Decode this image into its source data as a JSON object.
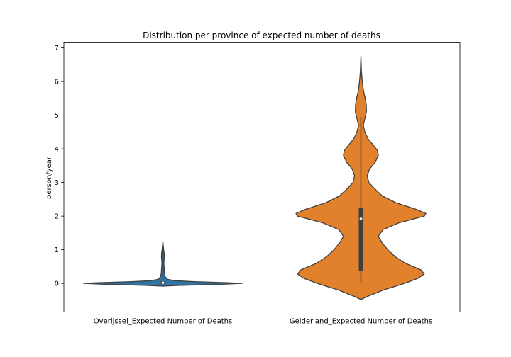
{
  "chart_data": {
    "type": "violin",
    "title": "Distribution per province of expected number of deaths",
    "xlabel": "",
    "ylabel": "person/year",
    "ylim": [
      -0.85,
      7.15
    ],
    "yticks": [
      0,
      1,
      2,
      3,
      4,
      5,
      6,
      7
    ],
    "grid": false,
    "categories": [
      "Overijssel_Expected Number of Deaths",
      "Gelderland_Expected Number of Deaths"
    ],
    "series": [
      {
        "color": "#3274a1",
        "whisker": [
          -0.02,
          1.22
        ],
        "box": [
          -0.01,
          0.06
        ],
        "median": 0.02,
        "density": [
          [
            -0.08,
            0.0
          ],
          [
            -0.06,
            0.2
          ],
          [
            -0.04,
            0.5
          ],
          [
            -0.02,
            0.8
          ],
          [
            0.0,
            1.0
          ],
          [
            0.02,
            0.82
          ],
          [
            0.05,
            0.42
          ],
          [
            0.08,
            0.15
          ],
          [
            0.12,
            0.06
          ],
          [
            0.2,
            0.03
          ],
          [
            0.3,
            0.02
          ],
          [
            0.4,
            0.018
          ],
          [
            0.5,
            0.015
          ],
          [
            0.6,
            0.012
          ],
          [
            0.7,
            0.015
          ],
          [
            0.8,
            0.018
          ],
          [
            0.9,
            0.016
          ],
          [
            1.0,
            0.01
          ],
          [
            1.1,
            0.006
          ],
          [
            1.22,
            0.0
          ]
        ]
      },
      {
        "color": "#e1812c",
        "whisker": [
          0.02,
          4.95
        ],
        "box": [
          0.38,
          2.25
        ],
        "median": 1.92,
        "density": [
          [
            -0.48,
            0.0
          ],
          [
            -0.4,
            0.07
          ],
          [
            -0.2,
            0.28
          ],
          [
            0.0,
            0.55
          ],
          [
            0.15,
            0.72
          ],
          [
            0.28,
            0.8
          ],
          [
            0.4,
            0.76
          ],
          [
            0.6,
            0.56
          ],
          [
            0.8,
            0.43
          ],
          [
            1.0,
            0.34
          ],
          [
            1.2,
            0.27
          ],
          [
            1.4,
            0.22
          ],
          [
            1.6,
            0.28
          ],
          [
            1.8,
            0.48
          ],
          [
            2.0,
            0.8
          ],
          [
            2.08,
            0.82
          ],
          [
            2.2,
            0.7
          ],
          [
            2.4,
            0.44
          ],
          [
            2.6,
            0.27
          ],
          [
            2.8,
            0.18
          ],
          [
            3.0,
            0.1
          ],
          [
            3.2,
            0.08
          ],
          [
            3.4,
            0.11
          ],
          [
            3.6,
            0.18
          ],
          [
            3.8,
            0.22
          ],
          [
            3.95,
            0.21
          ],
          [
            4.1,
            0.16
          ],
          [
            4.3,
            0.09
          ],
          [
            4.5,
            0.05
          ],
          [
            4.7,
            0.03
          ],
          [
            4.9,
            0.05
          ],
          [
            5.1,
            0.07
          ],
          [
            5.3,
            0.068
          ],
          [
            5.5,
            0.055
          ],
          [
            5.7,
            0.035
          ],
          [
            5.9,
            0.022
          ],
          [
            6.1,
            0.014
          ],
          [
            6.3,
            0.007
          ],
          [
            6.5,
            0.004
          ],
          [
            6.75,
            0.0
          ]
        ]
      }
    ]
  }
}
